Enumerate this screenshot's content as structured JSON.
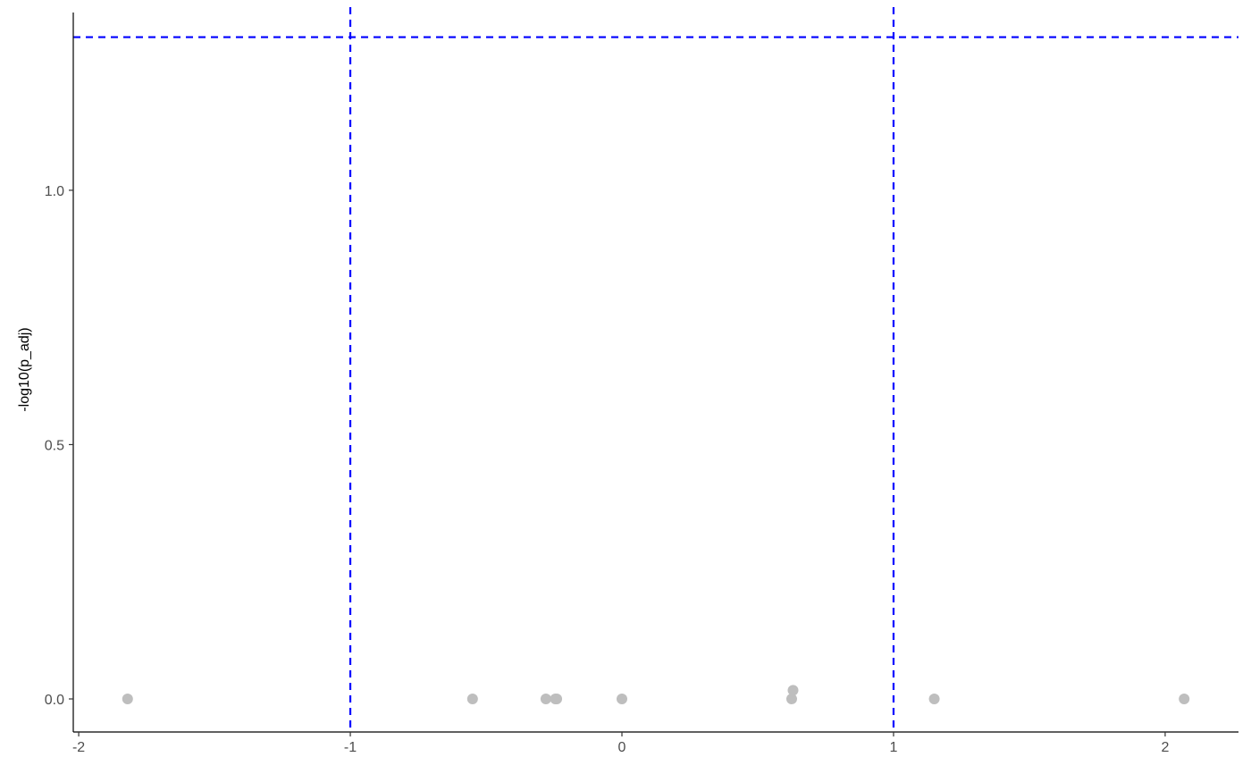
{
  "chart_data": {
    "type": "scatter",
    "xlabel": "",
    "ylabel": "-log10(p_adj)",
    "xlim": [
      -2.02,
      2.27
    ],
    "ylim": [
      -0.065,
      1.36
    ],
    "x_ticks": [
      -2,
      -1,
      0,
      1,
      2
    ],
    "x_tick_labels": [
      "-2",
      "-1",
      "0",
      "1",
      "2"
    ],
    "y_ticks": [
      0.0,
      0.5,
      1.0
    ],
    "y_tick_labels": [
      "0.0",
      "0.5",
      "1.0"
    ],
    "grid": false,
    "legend": "none",
    "points": [
      {
        "x": -1.82,
        "y": 0.0
      },
      {
        "x": -0.55,
        "y": 0.0
      },
      {
        "x": -0.28,
        "y": 0.0
      },
      {
        "x": -0.245,
        "y": 0.0
      },
      {
        "x": -0.24,
        "y": 0.0
      },
      {
        "x": 0.0,
        "y": 0.0
      },
      {
        "x": 0.625,
        "y": 0.0
      },
      {
        "x": 0.63,
        "y": 0.017
      },
      {
        "x": 1.15,
        "y": 0.0
      },
      {
        "x": 2.07,
        "y": 0.0
      }
    ],
    "threshold_lines": {
      "vertical": [
        -1,
        1
      ],
      "horizontal": [
        1.301
      ]
    },
    "colors": {
      "points": "#bebebe",
      "threshold": "#0000ff",
      "axis": "#000000",
      "tick_text": "#4d4d4d"
    }
  }
}
